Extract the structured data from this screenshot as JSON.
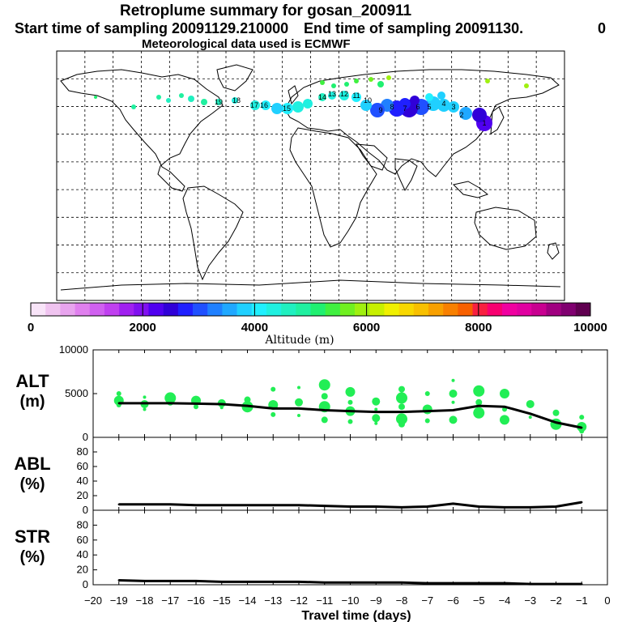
{
  "header": {
    "title": "Retroplume summary for gosan_200911",
    "start_label": "Start time of sampling 20091129.210000",
    "end_label": "End time of sampling 20091130.",
    "end_value": "0",
    "met_label": "Meteorological data used is ECMWF"
  },
  "colors": {
    "scatter": "#22ee55",
    "line": "#000000",
    "colorbar": [
      "#f8e4f8",
      "#f0c4f0",
      "#e8a4ee",
      "#e080ee",
      "#d060f0",
      "#c040f0",
      "#a020f0",
      "#8010f0",
      "#5000f0",
      "#3000d8",
      "#2020ff",
      "#2050ff",
      "#2080ff",
      "#20a8ff",
      "#20d0ff",
      "#20f0ff",
      "#20f0e0",
      "#20f0c0",
      "#20f0a0",
      "#20f070",
      "#40f040",
      "#70f020",
      "#a0f010",
      "#c8f000",
      "#f0f000",
      "#f8d800",
      "#f8c000",
      "#f8a000",
      "#f88000",
      "#f86000",
      "#f82040",
      "#f80070",
      "#f000a0",
      "#e000a0",
      "#c80090",
      "#a00080",
      "#800070",
      "#600050"
    ]
  },
  "colorbar": {
    "title": "Altitude (m)",
    "ticks": [
      "0",
      "2000",
      "4000",
      "6000",
      "8000",
      "10000"
    ]
  },
  "map": {
    "label_numbers": [
      "1",
      "2",
      "3",
      "4",
      "5",
      "6",
      "7",
      "8",
      "9",
      "10",
      "11",
      "12",
      "13",
      "14",
      "15",
      "16",
      "17",
      "18",
      "19"
    ]
  },
  "chart_data": [
    {
      "type": "line",
      "panel": "ALT",
      "ylabel_top": "ALT",
      "ylabel_bottom": "(m)",
      "ylim": [
        0,
        10000
      ],
      "yticks": [
        "10000",
        "5000",
        "0"
      ],
      "yticks_values": [
        10000,
        5000,
        0
      ],
      "x": [
        -19,
        -18,
        -17,
        -16,
        -15,
        -14,
        -13,
        -12,
        -11,
        -10,
        -9,
        -8,
        -7,
        -6,
        -5,
        -4,
        -3,
        -2,
        -1
      ],
      "values": [
        3900,
        3900,
        3900,
        3850,
        3800,
        3600,
        3300,
        3300,
        3100,
        3000,
        2900,
        2900,
        3000,
        3100,
        3600,
        3500,
        2700,
        1700,
        1100
      ],
      "scatter": [
        {
          "x": -19,
          "values": [
            5000,
            4200,
            3700
          ]
        },
        {
          "x": -18,
          "values": [
            4600,
            3800,
            3200
          ]
        },
        {
          "x": -17,
          "values": [
            4500,
            4000
          ]
        },
        {
          "x": -16,
          "values": [
            4200,
            3500
          ]
        },
        {
          "x": -15,
          "values": [
            3900,
            3400
          ]
        },
        {
          "x": -14,
          "values": [
            4300,
            3500
          ]
        },
        {
          "x": -13,
          "values": [
            5500,
            3700,
            2600
          ]
        },
        {
          "x": -12,
          "values": [
            5700,
            4000,
            2500
          ]
        },
        {
          "x": -11,
          "values": [
            6000,
            4700,
            3500,
            2000
          ]
        },
        {
          "x": -10,
          "values": [
            5200,
            4000,
            3000,
            1800
          ]
        },
        {
          "x": -9,
          "values": [
            4100,
            3200,
            2200,
            1600
          ]
        },
        {
          "x": -8,
          "values": [
            5500,
            4500,
            3500,
            2100,
            1500
          ]
        },
        {
          "x": -7,
          "values": [
            5000,
            3200,
            1900
          ]
        },
        {
          "x": -6,
          "values": [
            6500,
            5000,
            4000,
            2000
          ]
        },
        {
          "x": -5,
          "values": [
            5300,
            4000,
            2800
          ]
        },
        {
          "x": -4,
          "values": [
            5000,
            3200,
            2000
          ]
        },
        {
          "x": -3,
          "values": [
            3800,
            2300
          ]
        },
        {
          "x": -2,
          "values": [
            2800,
            1500
          ]
        },
        {
          "x": -1,
          "values": [
            2300,
            1200,
            700
          ]
        }
      ]
    },
    {
      "type": "line",
      "panel": "ABL",
      "ylabel_top": "ABL",
      "ylabel_bottom": "(%)",
      "ylim": [
        0,
        100
      ],
      "yticks": [
        "80",
        "60",
        "40",
        "20",
        "0"
      ],
      "yticks_values": [
        80,
        60,
        40,
        20,
        0
      ],
      "x": [
        -19,
        -18,
        -17,
        -16,
        -15,
        -14,
        -13,
        -12,
        -11,
        -10,
        -9,
        -8,
        -7,
        -6,
        -5,
        -4,
        -3,
        -2,
        -1
      ],
      "values": [
        8,
        8,
        8,
        7,
        7,
        7,
        7,
        7,
        6,
        5,
        5,
        4,
        5,
        9,
        5,
        4,
        4,
        5,
        11
      ]
    },
    {
      "type": "line",
      "panel": "STR",
      "ylabel_top": "STR",
      "ylabel_bottom": "(%)",
      "ylim": [
        0,
        100
      ],
      "yticks": [
        "80",
        "60",
        "40",
        "20",
        "0"
      ],
      "yticks_values": [
        80,
        60,
        40,
        20,
        0
      ],
      "x": [
        -19,
        -18,
        -17,
        -16,
        -15,
        -14,
        -13,
        -12,
        -11,
        -10,
        -9,
        -8,
        -7,
        -6,
        -5,
        -4,
        -3,
        -2,
        -1
      ],
      "values": [
        6,
        5,
        5,
        5,
        4,
        4,
        4,
        4,
        3,
        3,
        3,
        3,
        2,
        2,
        2,
        2,
        1,
        1,
        1
      ]
    }
  ],
  "xaxis": {
    "label": "Travel time (days)",
    "ticks": [
      "−20",
      "−19",
      "−18",
      "−17",
      "−16",
      "−15",
      "−14",
      "−13",
      "−12",
      "−11",
      "−10",
      "−9",
      "−8",
      "−7",
      "−6",
      "−5",
      "−4",
      "−3",
      "−2",
      "−1",
      "0"
    ],
    "tick_values": [
      -20,
      -19,
      -18,
      -17,
      -16,
      -15,
      -14,
      -13,
      -12,
      -11,
      -10,
      -9,
      -8,
      -7,
      -6,
      -5,
      -4,
      -3,
      -2,
      -1,
      0
    ]
  }
}
